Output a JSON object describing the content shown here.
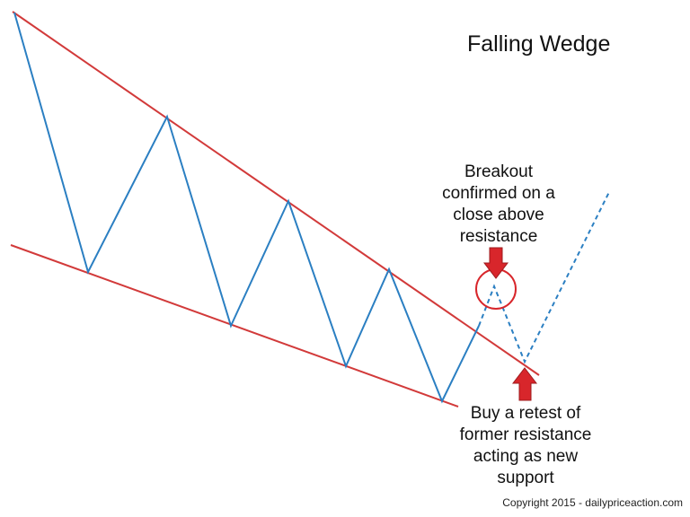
{
  "title": "Falling Wedge",
  "annotations": {
    "breakout": [
      "Breakout",
      "confirmed on a",
      "close above",
      "resistance"
    ],
    "retest": [
      "Buy a retest of",
      "former resistance",
      "acting as new",
      "support"
    ]
  },
  "copyright": "Copyright 2015 - dailypriceaction.com",
  "colors": {
    "price_line": "#2b7fc2",
    "trend_lines": "#d23a3a",
    "arrows": "#d8262b",
    "text": "#111111"
  }
}
